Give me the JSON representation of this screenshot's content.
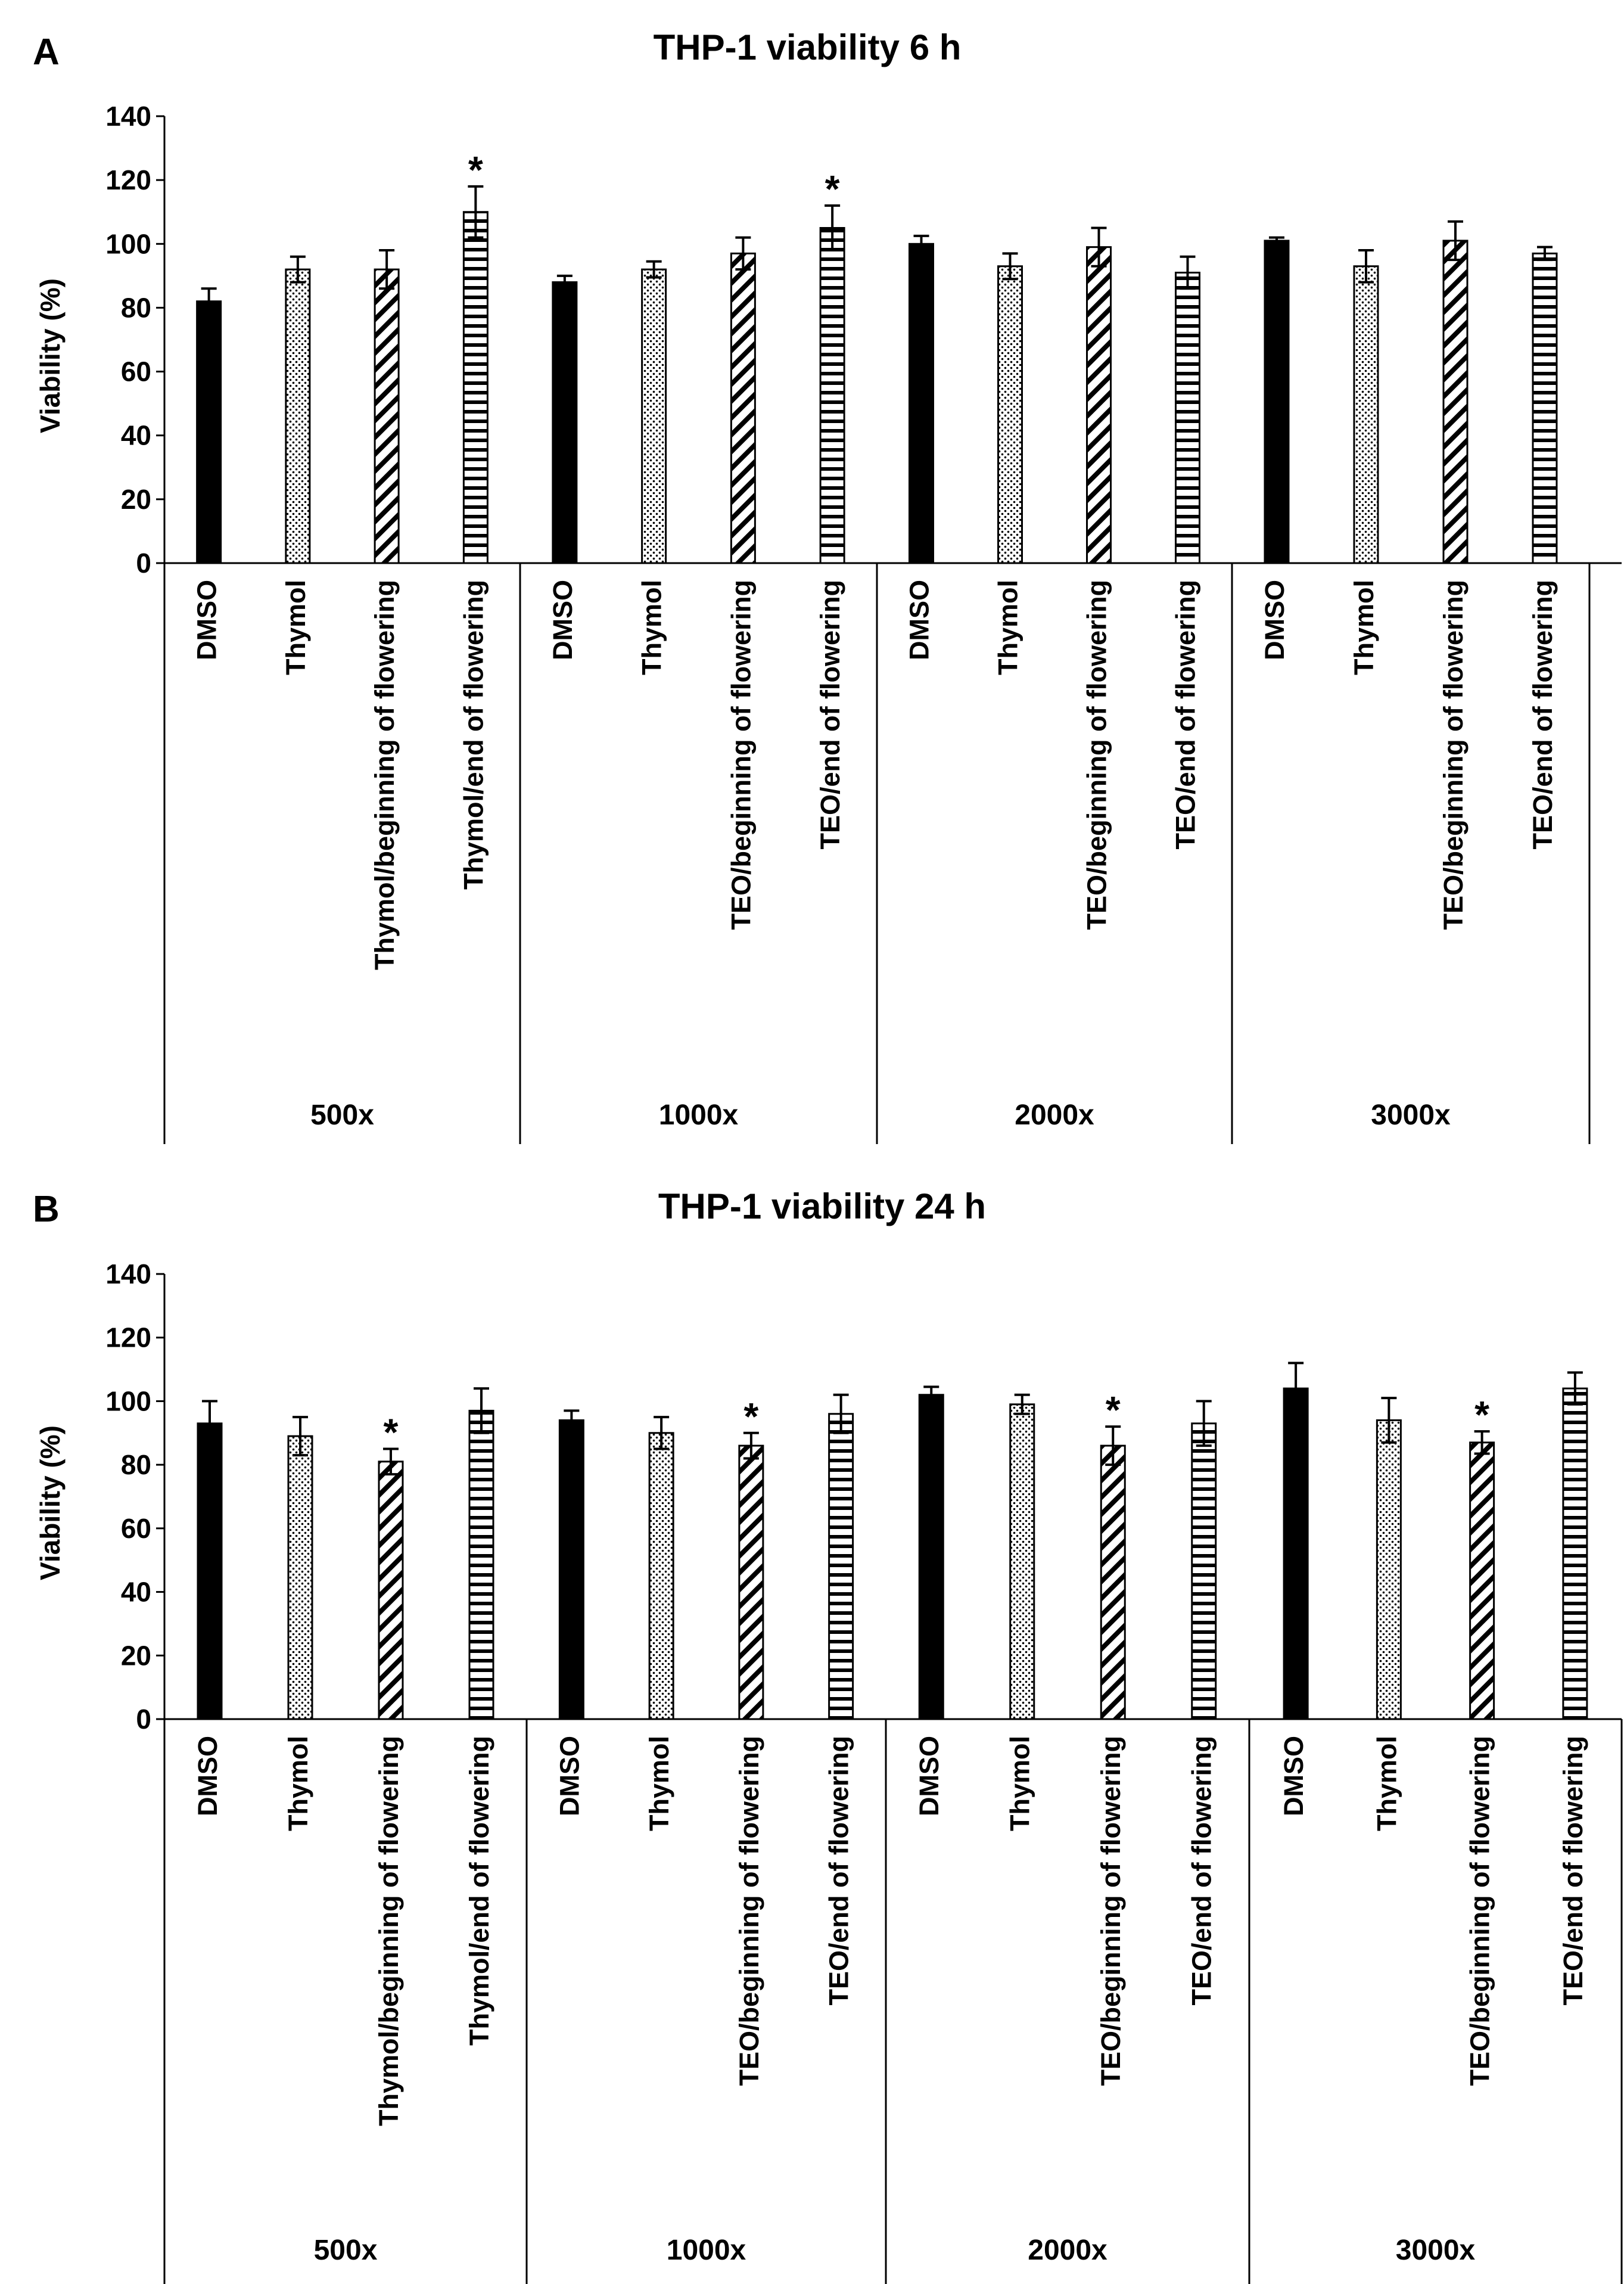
{
  "chart_data": [
    {
      "type": "bar",
      "panel_label": "A",
      "title": "THP-1 viability 6 h",
      "ylabel": "Viability (%)",
      "ylim": [
        0,
        140
      ],
      "yticks": [
        0,
        20,
        40,
        60,
        80,
        100,
        120,
        140
      ],
      "groups": [
        {
          "label": "500x",
          "bars": [
            {
              "name": "DMSO",
              "pattern": "solid",
              "value": 82,
              "error": 4,
              "significant": false
            },
            {
              "name": "Thymol",
              "pattern": "dots",
              "value": 92,
              "error": 4,
              "significant": false
            },
            {
              "name": "Thymol/beginning of flowering",
              "pattern": "diagonal",
              "value": 92,
              "error": 6,
              "significant": false
            },
            {
              "name": "Thymol/end of flowering",
              "pattern": "vertical",
              "value": 110,
              "error": 8,
              "significant": true
            }
          ]
        },
        {
          "label": "1000x",
          "bars": [
            {
              "name": "DMSO",
              "pattern": "solid",
              "value": 88,
              "error": 2,
              "significant": false
            },
            {
              "name": "Thymol",
              "pattern": "dots",
              "value": 92,
              "error": 2.5,
              "significant": false
            },
            {
              "name": "TEO/beginning of flowering",
              "pattern": "diagonal",
              "value": 97,
              "error": 5,
              "significant": false
            },
            {
              "name": "TEO/end of flowering",
              "pattern": "vertical",
              "value": 105,
              "error": 7,
              "significant": true
            }
          ]
        },
        {
          "label": "2000x",
          "bars": [
            {
              "name": "DMSO",
              "pattern": "solid",
              "value": 100,
              "error": 2.5,
              "significant": false
            },
            {
              "name": "Thymol",
              "pattern": "dots",
              "value": 93,
              "error": 4,
              "significant": false
            },
            {
              "name": "TEO/beginning of flowering",
              "pattern": "diagonal",
              "value": 99,
              "error": 6,
              "significant": false
            },
            {
              "name": "TEO/end of flowering",
              "pattern": "vertical",
              "value": 91,
              "error": 5,
              "significant": false
            }
          ]
        },
        {
          "label": "3000x",
          "bars": [
            {
              "name": "DMSO",
              "pattern": "solid",
              "value": 101,
              "error": 1,
              "significant": false
            },
            {
              "name": "Thymol",
              "pattern": "dots",
              "value": 93,
              "error": 5,
              "significant": false
            },
            {
              "name": "TEO/beginning of flowering",
              "pattern": "diagonal",
              "value": 101,
              "error": 6,
              "significant": false
            },
            {
              "name": "TEO/end of flowering",
              "pattern": "vertical",
              "value": 97,
              "error": 2,
              "significant": false
            }
          ]
        }
      ]
    },
    {
      "type": "bar",
      "panel_label": "B",
      "title": "THP-1 viability 24 h",
      "ylabel": "Viability (%)",
      "ylim": [
        0,
        140
      ],
      "yticks": [
        0,
        20,
        40,
        60,
        80,
        100,
        120,
        140
      ],
      "groups": [
        {
          "label": "500x",
          "bars": [
            {
              "name": "DMSO",
              "pattern": "solid",
              "value": 93,
              "error": 7,
              "significant": false
            },
            {
              "name": "Thymol",
              "pattern": "dots",
              "value": 89,
              "error": 6,
              "significant": false
            },
            {
              "name": "Thymol/beginning of flowering",
              "pattern": "diagonal",
              "value": 81,
              "error": 4,
              "significant": true
            },
            {
              "name": "Thymol/end of flowering",
              "pattern": "vertical",
              "value": 97,
              "error": 7,
              "significant": false
            }
          ]
        },
        {
          "label": "1000x",
          "bars": [
            {
              "name": "DMSO",
              "pattern": "solid",
              "value": 94,
              "error": 3,
              "significant": false
            },
            {
              "name": "Thymol",
              "pattern": "dots",
              "value": 90,
              "error": 5,
              "significant": false
            },
            {
              "name": "TEO/beginning of flowering",
              "pattern": "diagonal",
              "value": 86,
              "error": 4,
              "significant": true
            },
            {
              "name": "TEO/end of flowering",
              "pattern": "vertical",
              "value": 96,
              "error": 6,
              "significant": false
            }
          ]
        },
        {
          "label": "2000x",
          "bars": [
            {
              "name": "DMSO",
              "pattern": "solid",
              "value": 102,
              "error": 2.5,
              "significant": false
            },
            {
              "name": "Thymol",
              "pattern": "dots",
              "value": 99,
              "error": 3,
              "significant": false
            },
            {
              "name": "TEO/beginning of flowering",
              "pattern": "diagonal",
              "value": 86,
              "error": 6,
              "significant": true
            },
            {
              "name": "TEO/end of flowering",
              "pattern": "vertical",
              "value": 93,
              "error": 7,
              "significant": false
            }
          ]
        },
        {
          "label": "3000x",
          "bars": [
            {
              "name": "DMSO",
              "pattern": "solid",
              "value": 104,
              "error": 8,
              "significant": false
            },
            {
              "name": "Thymol",
              "pattern": "dots",
              "value": 94,
              "error": 7,
              "significant": false
            },
            {
              "name": "TEO/beginning of flowering",
              "pattern": "diagonal",
              "value": 87,
              "error": 3.5,
              "significant": true
            },
            {
              "name": "TEO/end of flowering",
              "pattern": "vertical",
              "value": 104,
              "error": 5,
              "significant": false
            }
          ]
        }
      ]
    }
  ],
  "significance_marker": "*"
}
